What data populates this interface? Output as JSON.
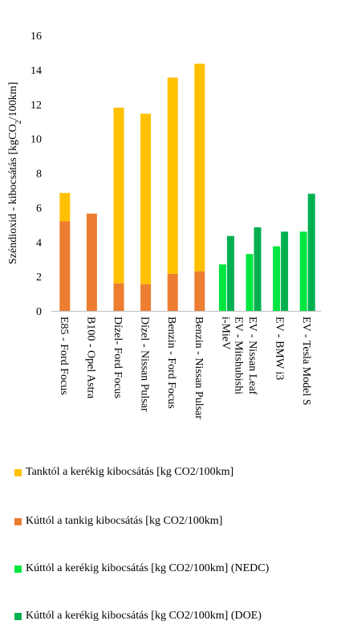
{
  "chart_data": {
    "type": "bar",
    "stacked": true,
    "ylabel": "Széndioxid - kibocsátás [kgCO₂/100km]",
    "ylim": [
      0,
      16
    ],
    "yticks": [
      0,
      2,
      4,
      6,
      8,
      10,
      12,
      14,
      16
    ],
    "grid": false,
    "legend_placement": "bottom",
    "categories": [
      "E85 - Ford Focus",
      "B100 - Opel Astra",
      "Dízel- Ford Focus",
      "Dízel - Nissan Pulsar",
      "Benzin - Ford Focus",
      "Benzin - Nissan Pulsar",
      "EV - Mitshubishi i-MieV",
      "EV - Nissan Leaf",
      "EV - BMW i3",
      "EV - Tesla Model S"
    ],
    "series": [
      {
        "name": "Tanktól a kerékig kibocsátás [kg CO2/100km]",
        "color": "#FFC000",
        "values": [
          1.65,
          0,
          10.2,
          9.9,
          11.4,
          12.05,
          null,
          null,
          null,
          null
        ]
      },
      {
        "name": "Kúttól a tankig kibocsátás [kg CO2/100km]",
        "color": "#ED7D31",
        "values": [
          5.2,
          5.65,
          1.6,
          1.55,
          2.15,
          2.3,
          null,
          null,
          null,
          null
        ]
      },
      {
        "name": "Kúttól a kerékig kibocsátás [kg CO2/100km] (NEDC)",
        "color": "#00E640",
        "values": [
          null,
          null,
          null,
          null,
          null,
          null,
          2.7,
          3.3,
          3.75,
          4.6
        ]
      },
      {
        "name": "Kúttól a kerékig kibocsátás [kg CO2/100km] (DOE)",
        "color": "#00B050",
        "values": [
          null,
          null,
          null,
          null,
          null,
          null,
          4.35,
          4.85,
          4.6,
          6.8
        ]
      }
    ]
  }
}
